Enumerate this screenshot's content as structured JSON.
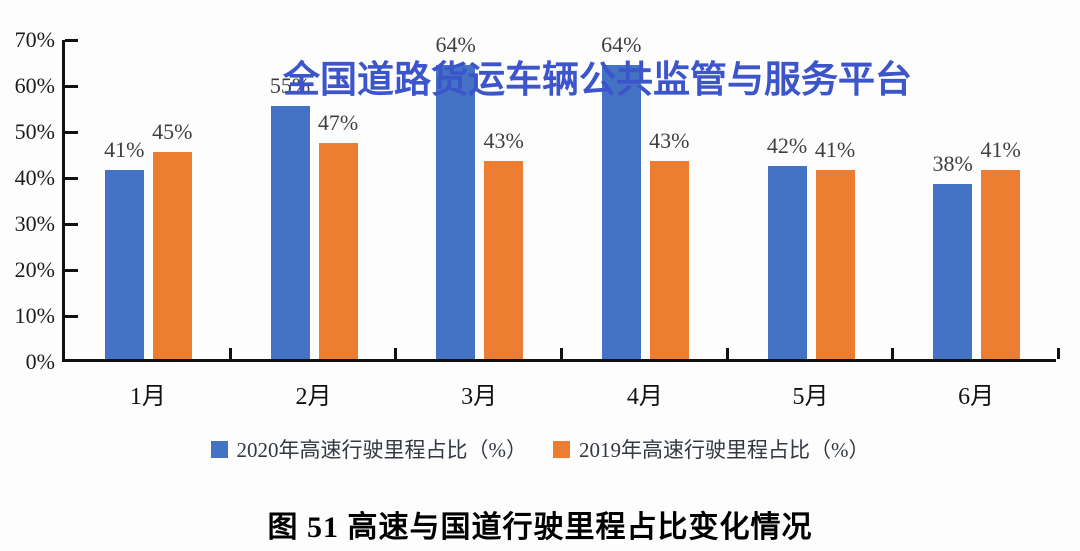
{
  "watermark": {
    "text": "全国道路货运车辆公共监管与服务平台",
    "color": "#3C55CB"
  },
  "caption": {
    "text": "图 51 高速与国道行驶里程占比变化情况"
  },
  "chart_data": {
    "type": "bar",
    "categories": [
      "1月",
      "2月",
      "3月",
      "4月",
      "5月",
      "6月"
    ],
    "series": [
      {
        "id": "2020",
        "name": "2020年高速行驶里程占比（%）",
        "color": "#4472C4",
        "values": [
          41,
          55,
          64,
          64,
          42,
          38
        ]
      },
      {
        "id": "2019",
        "name": "2019年高速行驶里程占比（%）",
        "color": "#ED7D31",
        "values": [
          45,
          47,
          43,
          43,
          41,
          41
        ]
      }
    ],
    "value_suffix": "%",
    "ylim": [
      0,
      70
    ],
    "ytick_values": [
      70,
      60,
      50,
      40,
      30,
      20,
      10,
      0
    ],
    "yticks": [
      "70%",
      "60%",
      "50%",
      "40%",
      "30%",
      "20%",
      "10%",
      "0%"
    ],
    "grid": false,
    "legend_position": "bottom",
    "axis_color": "#111111",
    "label_color": "#3f3f3f"
  }
}
